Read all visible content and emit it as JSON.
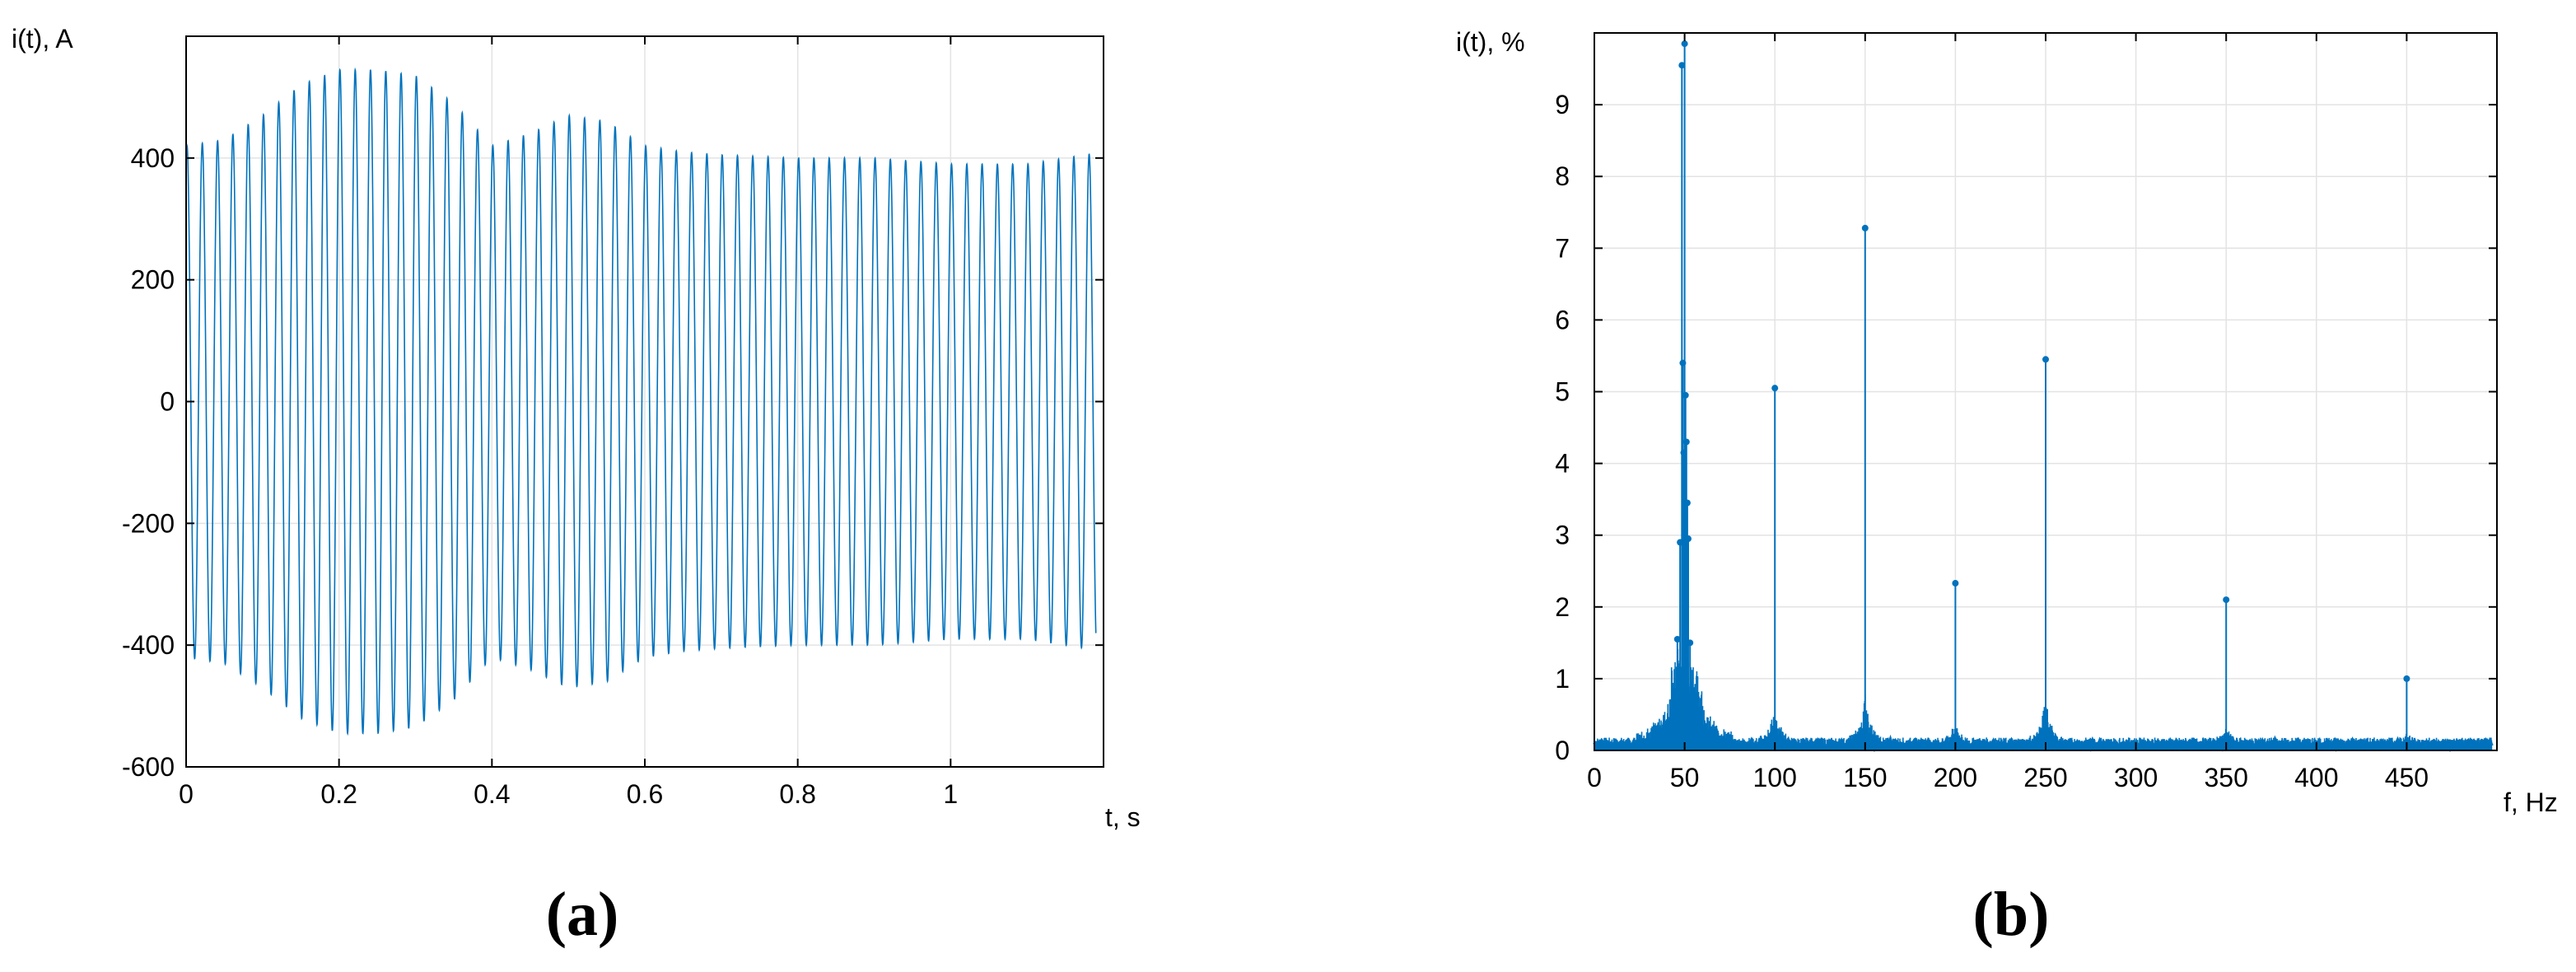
{
  "colors": {
    "signal": "#0072BD",
    "axis": "#000000",
    "grid": "#e3e3e3",
    "background": "#ffffff"
  },
  "chart_data": [
    {
      "type": "line",
      "panel_label": "(a)",
      "xlabel": "t, s",
      "ylabel": "i(t), A",
      "xlim": [
        0,
        1.2
      ],
      "ylim": [
        -600,
        600
      ],
      "xticks": [
        0,
        0.2,
        0.4,
        0.6,
        0.8,
        1
      ],
      "xtick_labels": [
        "0",
        "0.2",
        "0.4",
        "0.6",
        "0.8",
        "1"
      ],
      "yticks": [
        -600,
        -400,
        -200,
        0,
        200,
        400
      ],
      "ytick_labels": [
        "-600",
        "-400",
        "-200",
        "0",
        "200",
        "400"
      ],
      "grid": true,
      "signal_frequency_hz": 50,
      "envelope": {
        "t": [
          0,
          0.05,
          0.1,
          0.15,
          0.2,
          0.25,
          0.3,
          0.35,
          0.4,
          0.45,
          0.5,
          0.55,
          0.6,
          0.65,
          0.7,
          0.8,
          0.9,
          1.0,
          1.1,
          1.2
        ],
        "amplitude": [
          420,
          430,
          470,
          520,
          545,
          545,
          535,
          490,
          420,
          440,
          470,
          460,
          420,
          410,
          405,
          400,
          400,
          390,
          390,
          410
        ]
      }
    },
    {
      "type": "stem",
      "panel_label": "(b)",
      "xlabel": "f, Hz",
      "ylabel": "i(t), %",
      "xlim": [
        0,
        500
      ],
      "ylim": [
        0,
        10
      ],
      "xticks": [
        0,
        50,
        100,
        150,
        200,
        250,
        300,
        350,
        400,
        450
      ],
      "xtick_labels": [
        "0",
        "50",
        "100",
        "150",
        "200",
        "250",
        "300",
        "350",
        "400",
        "450"
      ],
      "yticks": [
        0,
        1,
        2,
        3,
        4,
        5,
        6,
        7,
        8,
        9
      ],
      "ytick_labels": [
        "0",
        "1",
        "2",
        "3",
        "4",
        "5",
        "6",
        "7",
        "8",
        "9"
      ],
      "grid": true,
      "x": [
        50,
        100,
        150,
        200,
        250,
        350,
        450
      ],
      "values": [
        9.85,
        5.05,
        7.28,
        2.33,
        5.45,
        2.1,
        1.0
      ],
      "cluster_peaks": {
        "x": [
          48.5,
          49,
          49.5,
          50.5,
          51,
          51.5,
          52,
          47.5,
          53,
          46
        ],
        "values": [
          9.55,
          5.4,
          4.15,
          4.95,
          4.3,
          3.45,
          2.95,
          2.9,
          1.5,
          1.55
        ]
      }
    }
  ]
}
